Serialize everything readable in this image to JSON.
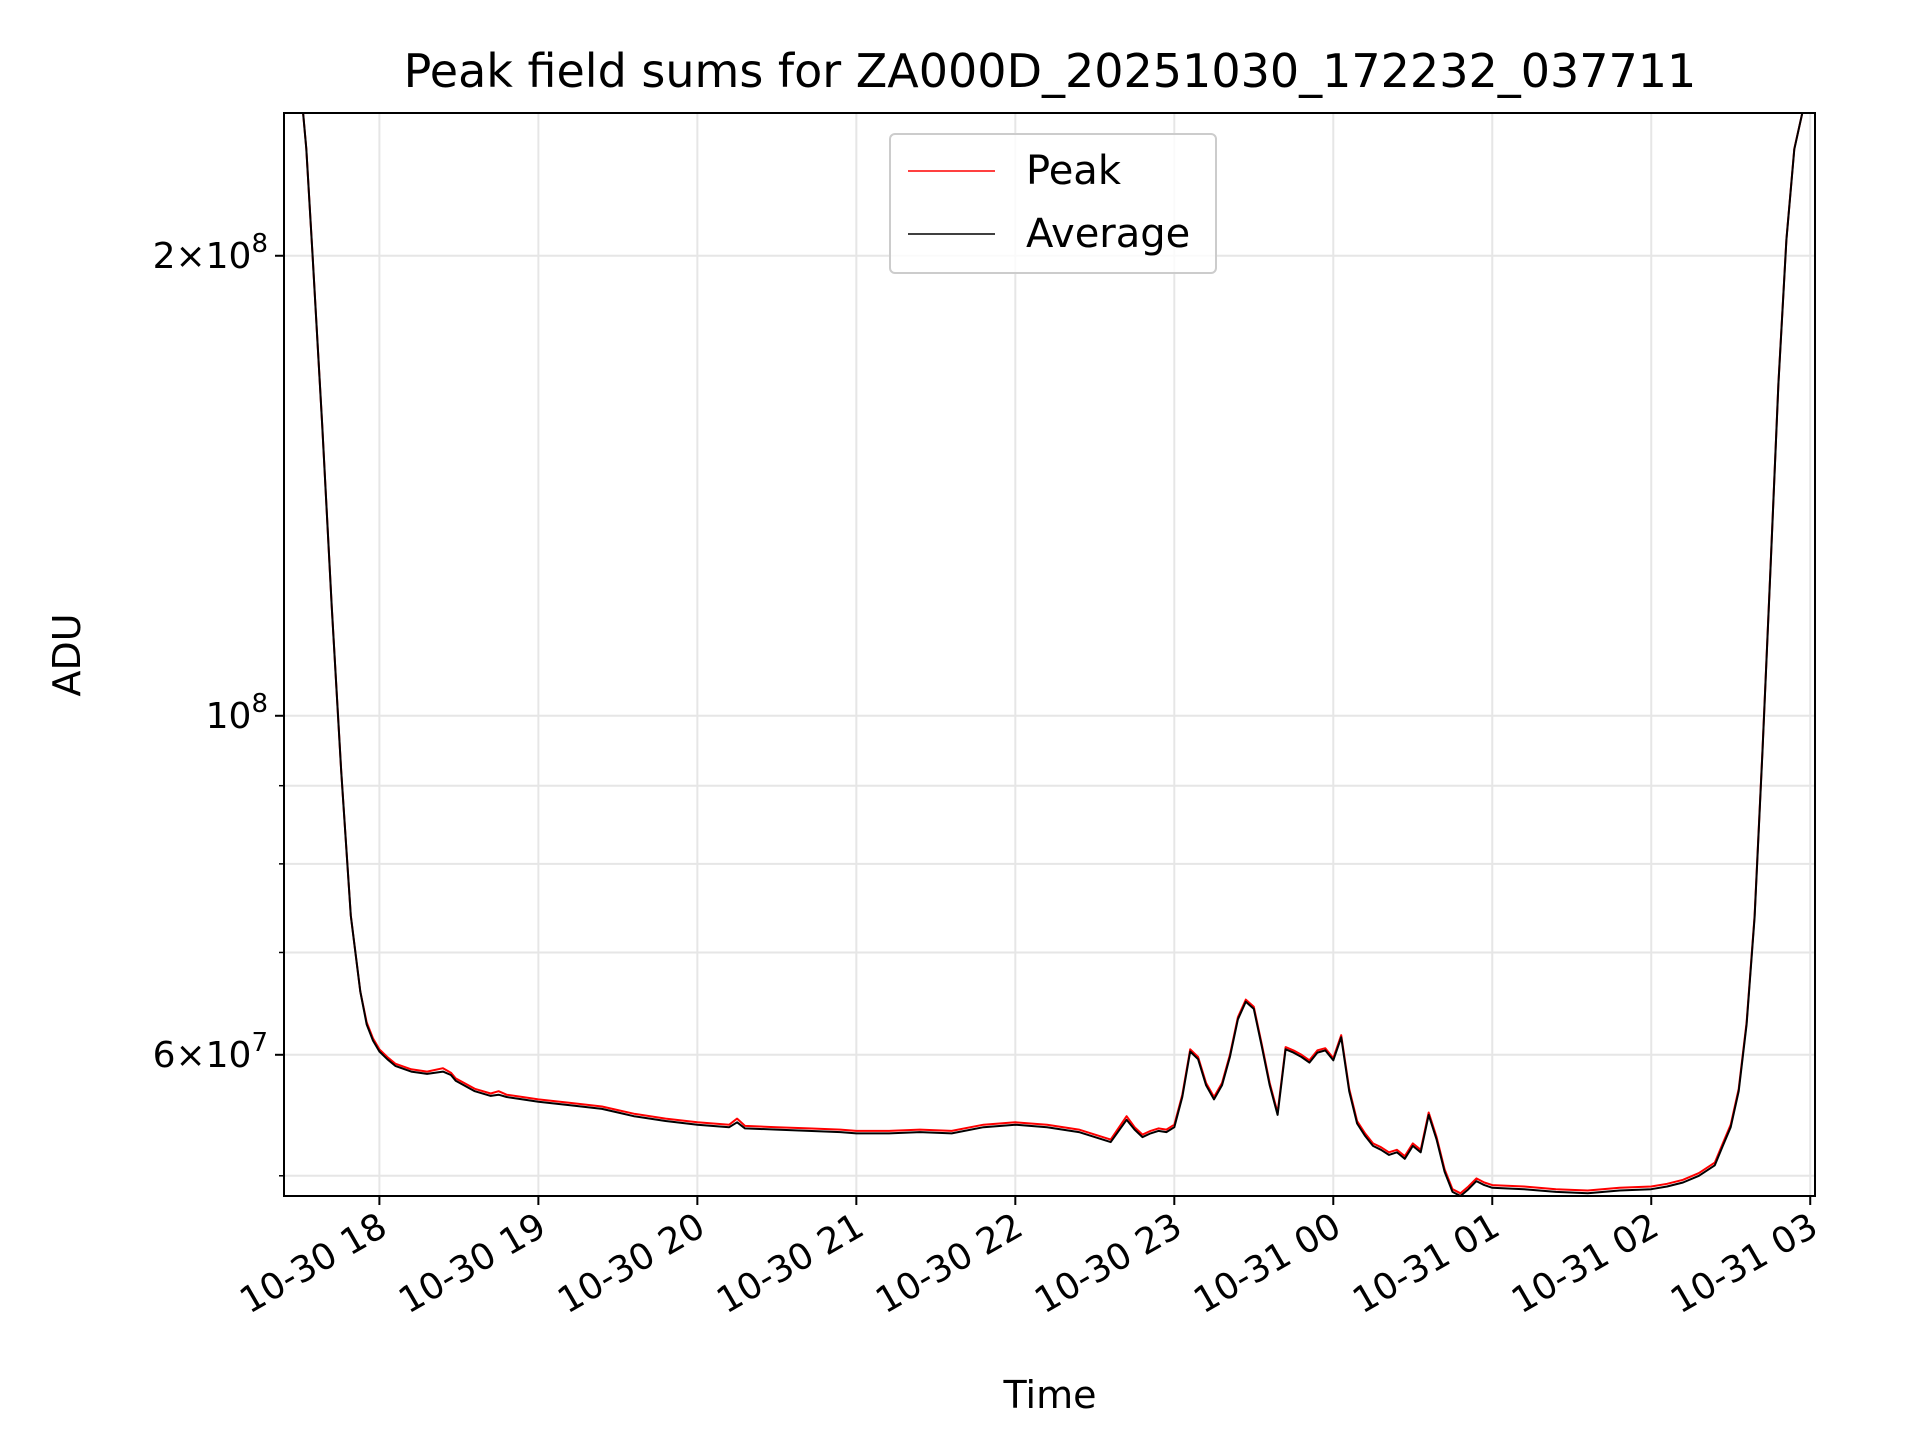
{
  "chart_data": {
    "type": "line",
    "title": "Peak field sums for ZA000D_20251030_172232_037711",
    "xlabel": "Time",
    "ylabel": "ADU",
    "yscale": "log",
    "ylim": [
      48500000,
      248000000
    ],
    "xlim_hours": [
      -0.6,
      9.03
    ],
    "grid": true,
    "legend_location": "upper center",
    "x_ticks": [
      {
        "hour": 0,
        "label": "10-30 18"
      },
      {
        "hour": 1,
        "label": "10-30 19"
      },
      {
        "hour": 2,
        "label": "10-30 20"
      },
      {
        "hour": 3,
        "label": "10-30 21"
      },
      {
        "hour": 4,
        "label": "10-30 22"
      },
      {
        "hour": 5,
        "label": "10-30 23"
      },
      {
        "hour": 6,
        "label": "10-31 00"
      },
      {
        "hour": 7,
        "label": "10-31 01"
      },
      {
        "hour": 8,
        "label": "10-31 02"
      },
      {
        "hour": 9,
        "label": "10-31 03"
      }
    ],
    "y_major_ticks": [
      {
        "value": 60000000,
        "mant": "6",
        "exp": "7"
      },
      {
        "value": 100000000,
        "mant": "",
        "exp": "8"
      },
      {
        "value": 200000000,
        "mant": "2",
        "exp": "8"
      }
    ],
    "y_minor_ticks": [
      50000000,
      70000000,
      80000000,
      90000000
    ],
    "series": [
      {
        "name": "Peak",
        "color": "#ff0000",
        "hours": [
          -0.58,
          -0.48,
          -0.46,
          -0.42,
          -0.36,
          -0.3,
          -0.24,
          -0.18,
          -0.12,
          -0.08,
          -0.04,
          0.0,
          0.05,
          0.1,
          0.2,
          0.3,
          0.4,
          0.45,
          0.48,
          0.6,
          0.7,
          0.75,
          0.8,
          0.9,
          1.0,
          1.2,
          1.4,
          1.5,
          1.6,
          1.8,
          2.0,
          2.2,
          2.25,
          2.3,
          2.5,
          2.7,
          2.9,
          3.0,
          3.2,
          3.4,
          3.6,
          3.8,
          4.0,
          4.2,
          4.4,
          4.6,
          4.7,
          4.75,
          4.8,
          4.85,
          4.9,
          4.95,
          5.0,
          5.05,
          5.1,
          5.15,
          5.2,
          5.25,
          5.3,
          5.35,
          5.4,
          5.45,
          5.5,
          5.55,
          5.6,
          5.65,
          5.7,
          5.75,
          5.8,
          5.85,
          5.9,
          5.95,
          6.0,
          6.05,
          6.1,
          6.15,
          6.2,
          6.25,
          6.3,
          6.35,
          6.4,
          6.45,
          6.5,
          6.55,
          6.6,
          6.65,
          6.7,
          6.75,
          6.8,
          6.85,
          6.9,
          6.95,
          7.0,
          7.2,
          7.4,
          7.6,
          7.8,
          8.0,
          8.1,
          8.2,
          8.3,
          8.4,
          8.45,
          8.5,
          8.55,
          8.6,
          8.65,
          8.7,
          8.75,
          8.8,
          8.85,
          8.9,
          8.95,
          9.0,
          9.02
        ],
        "values": [
          248000000,
          248000000,
          235000000,
          200000000,
          155000000,
          118000000,
          92000000,
          74000000,
          66000000,
          63000000,
          61500000,
          60500000,
          59800000,
          59200000,
          58700000,
          58500000,
          58800000,
          58400000,
          57900000,
          57000000,
          56600000,
          56800000,
          56500000,
          56300000,
          56100000,
          55800000,
          55500000,
          55200000,
          54900000,
          54500000,
          54200000,
          54000000,
          54500000,
          53900000,
          53800000,
          53700000,
          53600000,
          53500000,
          53500000,
          53600000,
          53500000,
          54000000,
          54200000,
          54000000,
          53600000,
          52800000,
          54700000,
          53800000,
          53200000,
          53500000,
          53700000,
          53600000,
          54000000,
          56500000,
          60500000,
          59800000,
          57500000,
          56300000,
          57500000,
          60000000,
          63500000,
          65200000,
          64500000,
          61000000,
          57500000,
          55000000,
          60700000,
          60400000,
          60000000,
          59500000,
          60400000,
          60600000,
          59700000,
          61800000,
          57000000,
          54300000,
          53300000,
          52500000,
          52200000,
          51800000,
          52000000,
          51500000,
          52500000,
          52000000,
          55000000,
          53000000,
          50500000,
          49000000,
          48700000,
          49200000,
          49800000,
          49500000,
          49300000,
          49200000,
          49000000,
          48900000,
          49100000,
          49200000,
          49400000,
          49700000,
          50200000,
          51000000,
          52500000,
          54000000,
          57000000,
          63000000,
          74000000,
          95000000,
          125000000,
          165000000,
          205000000,
          235000000,
          248000000,
          248000000,
          248000000
        ]
      },
      {
        "name": "Average",
        "color": "#000000",
        "hours": [
          -0.58,
          -0.48,
          -0.46,
          -0.42,
          -0.36,
          -0.3,
          -0.24,
          -0.18,
          -0.12,
          -0.08,
          -0.04,
          0.0,
          0.05,
          0.1,
          0.2,
          0.3,
          0.4,
          0.45,
          0.48,
          0.6,
          0.7,
          0.75,
          0.8,
          0.9,
          1.0,
          1.2,
          1.4,
          1.5,
          1.6,
          1.8,
          2.0,
          2.2,
          2.25,
          2.3,
          2.5,
          2.7,
          2.9,
          3.0,
          3.2,
          3.4,
          3.6,
          3.8,
          4.0,
          4.2,
          4.4,
          4.6,
          4.7,
          4.75,
          4.8,
          4.85,
          4.9,
          4.95,
          5.0,
          5.05,
          5.1,
          5.15,
          5.2,
          5.25,
          5.3,
          5.35,
          5.4,
          5.45,
          5.5,
          5.55,
          5.6,
          5.65,
          5.7,
          5.75,
          5.8,
          5.85,
          5.9,
          5.95,
          6.0,
          6.05,
          6.1,
          6.15,
          6.2,
          6.25,
          6.3,
          6.35,
          6.4,
          6.45,
          6.5,
          6.55,
          6.6,
          6.65,
          6.7,
          6.75,
          6.8,
          6.85,
          6.9,
          6.95,
          7.0,
          7.2,
          7.4,
          7.6,
          7.8,
          8.0,
          8.1,
          8.2,
          8.3,
          8.4,
          8.45,
          8.5,
          8.55,
          8.6,
          8.65,
          8.7,
          8.75,
          8.8,
          8.85,
          8.9,
          8.95,
          9.0,
          9.02
        ],
        "values": [
          248000000,
          248000000,
          235000000,
          200000000,
          155000000,
          118000000,
          92000000,
          74000000,
          66000000,
          62800000,
          61300000,
          60300000,
          59600000,
          59000000,
          58500000,
          58300000,
          58500000,
          58200000,
          57700000,
          56800000,
          56400000,
          56500000,
          56300000,
          56100000,
          55900000,
          55600000,
          55300000,
          55000000,
          54700000,
          54300000,
          54000000,
          53800000,
          54200000,
          53700000,
          53600000,
          53500000,
          53400000,
          53300000,
          53300000,
          53400000,
          53300000,
          53800000,
          54000000,
          53800000,
          53400000,
          52600000,
          54400000,
          53600000,
          53000000,
          53300000,
          53500000,
          53400000,
          53800000,
          56300000,
          60300000,
          59600000,
          57300000,
          56100000,
          57300000,
          59800000,
          63300000,
          65000000,
          64300000,
          60800000,
          57300000,
          54800000,
          60500000,
          60200000,
          59800000,
          59300000,
          60200000,
          60400000,
          59500000,
          61600000,
          56800000,
          54100000,
          53100000,
          52300000,
          52000000,
          51600000,
          51800000,
          51300000,
          52300000,
          51800000,
          54800000,
          52800000,
          50300000,
          48800000,
          48500000,
          49000000,
          49600000,
          49300000,
          49100000,
          49000000,
          48800000,
          48700000,
          48900000,
          49000000,
          49200000,
          49500000,
          50000000,
          50800000,
          52300000,
          53800000,
          56800000,
          62800000,
          73800000,
          94800000,
          124800000,
          164800000,
          204800000,
          234800000,
          248000000,
          248000000,
          248000000
        ]
      }
    ]
  }
}
